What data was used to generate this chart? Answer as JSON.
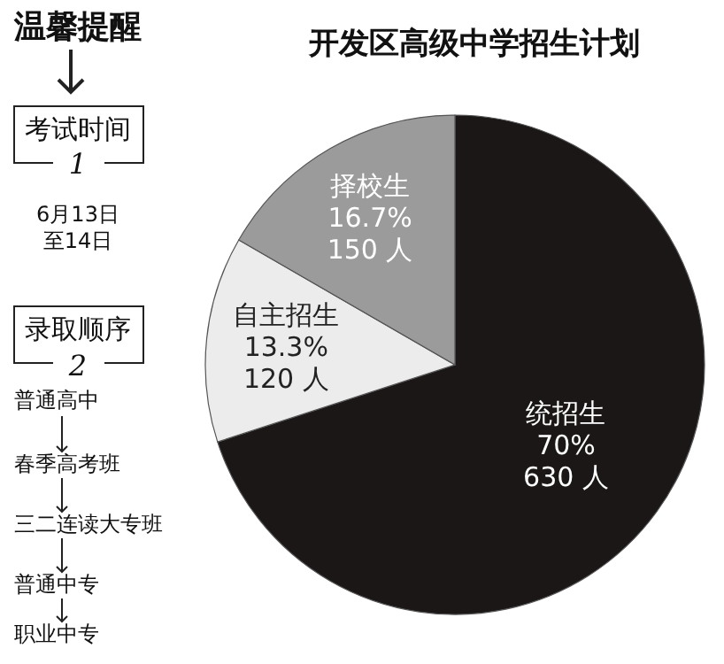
{
  "chart_data": {
    "type": "pie",
    "title": "开发区高级中学招生计划",
    "categories": [
      "统招生",
      "自主招生",
      "择校生"
    ],
    "values": [
      630,
      120,
      150
    ],
    "colors": [
      "#1c1717",
      "#ececec",
      "#9b9b9b"
    ],
    "value_labels": [
      "70%\n630 人",
      "13.3%\n120 人",
      "16.7%\n150 人"
    ],
    "annotations": [
      "温馨提醒",
      "考试时间",
      "1",
      "6月13日",
      "至14日",
      "录取顺序",
      "2",
      "普通高中",
      "春季高考班",
      "三二连读大专班",
      "普通中专",
      "职业中专"
    ]
  }
}
